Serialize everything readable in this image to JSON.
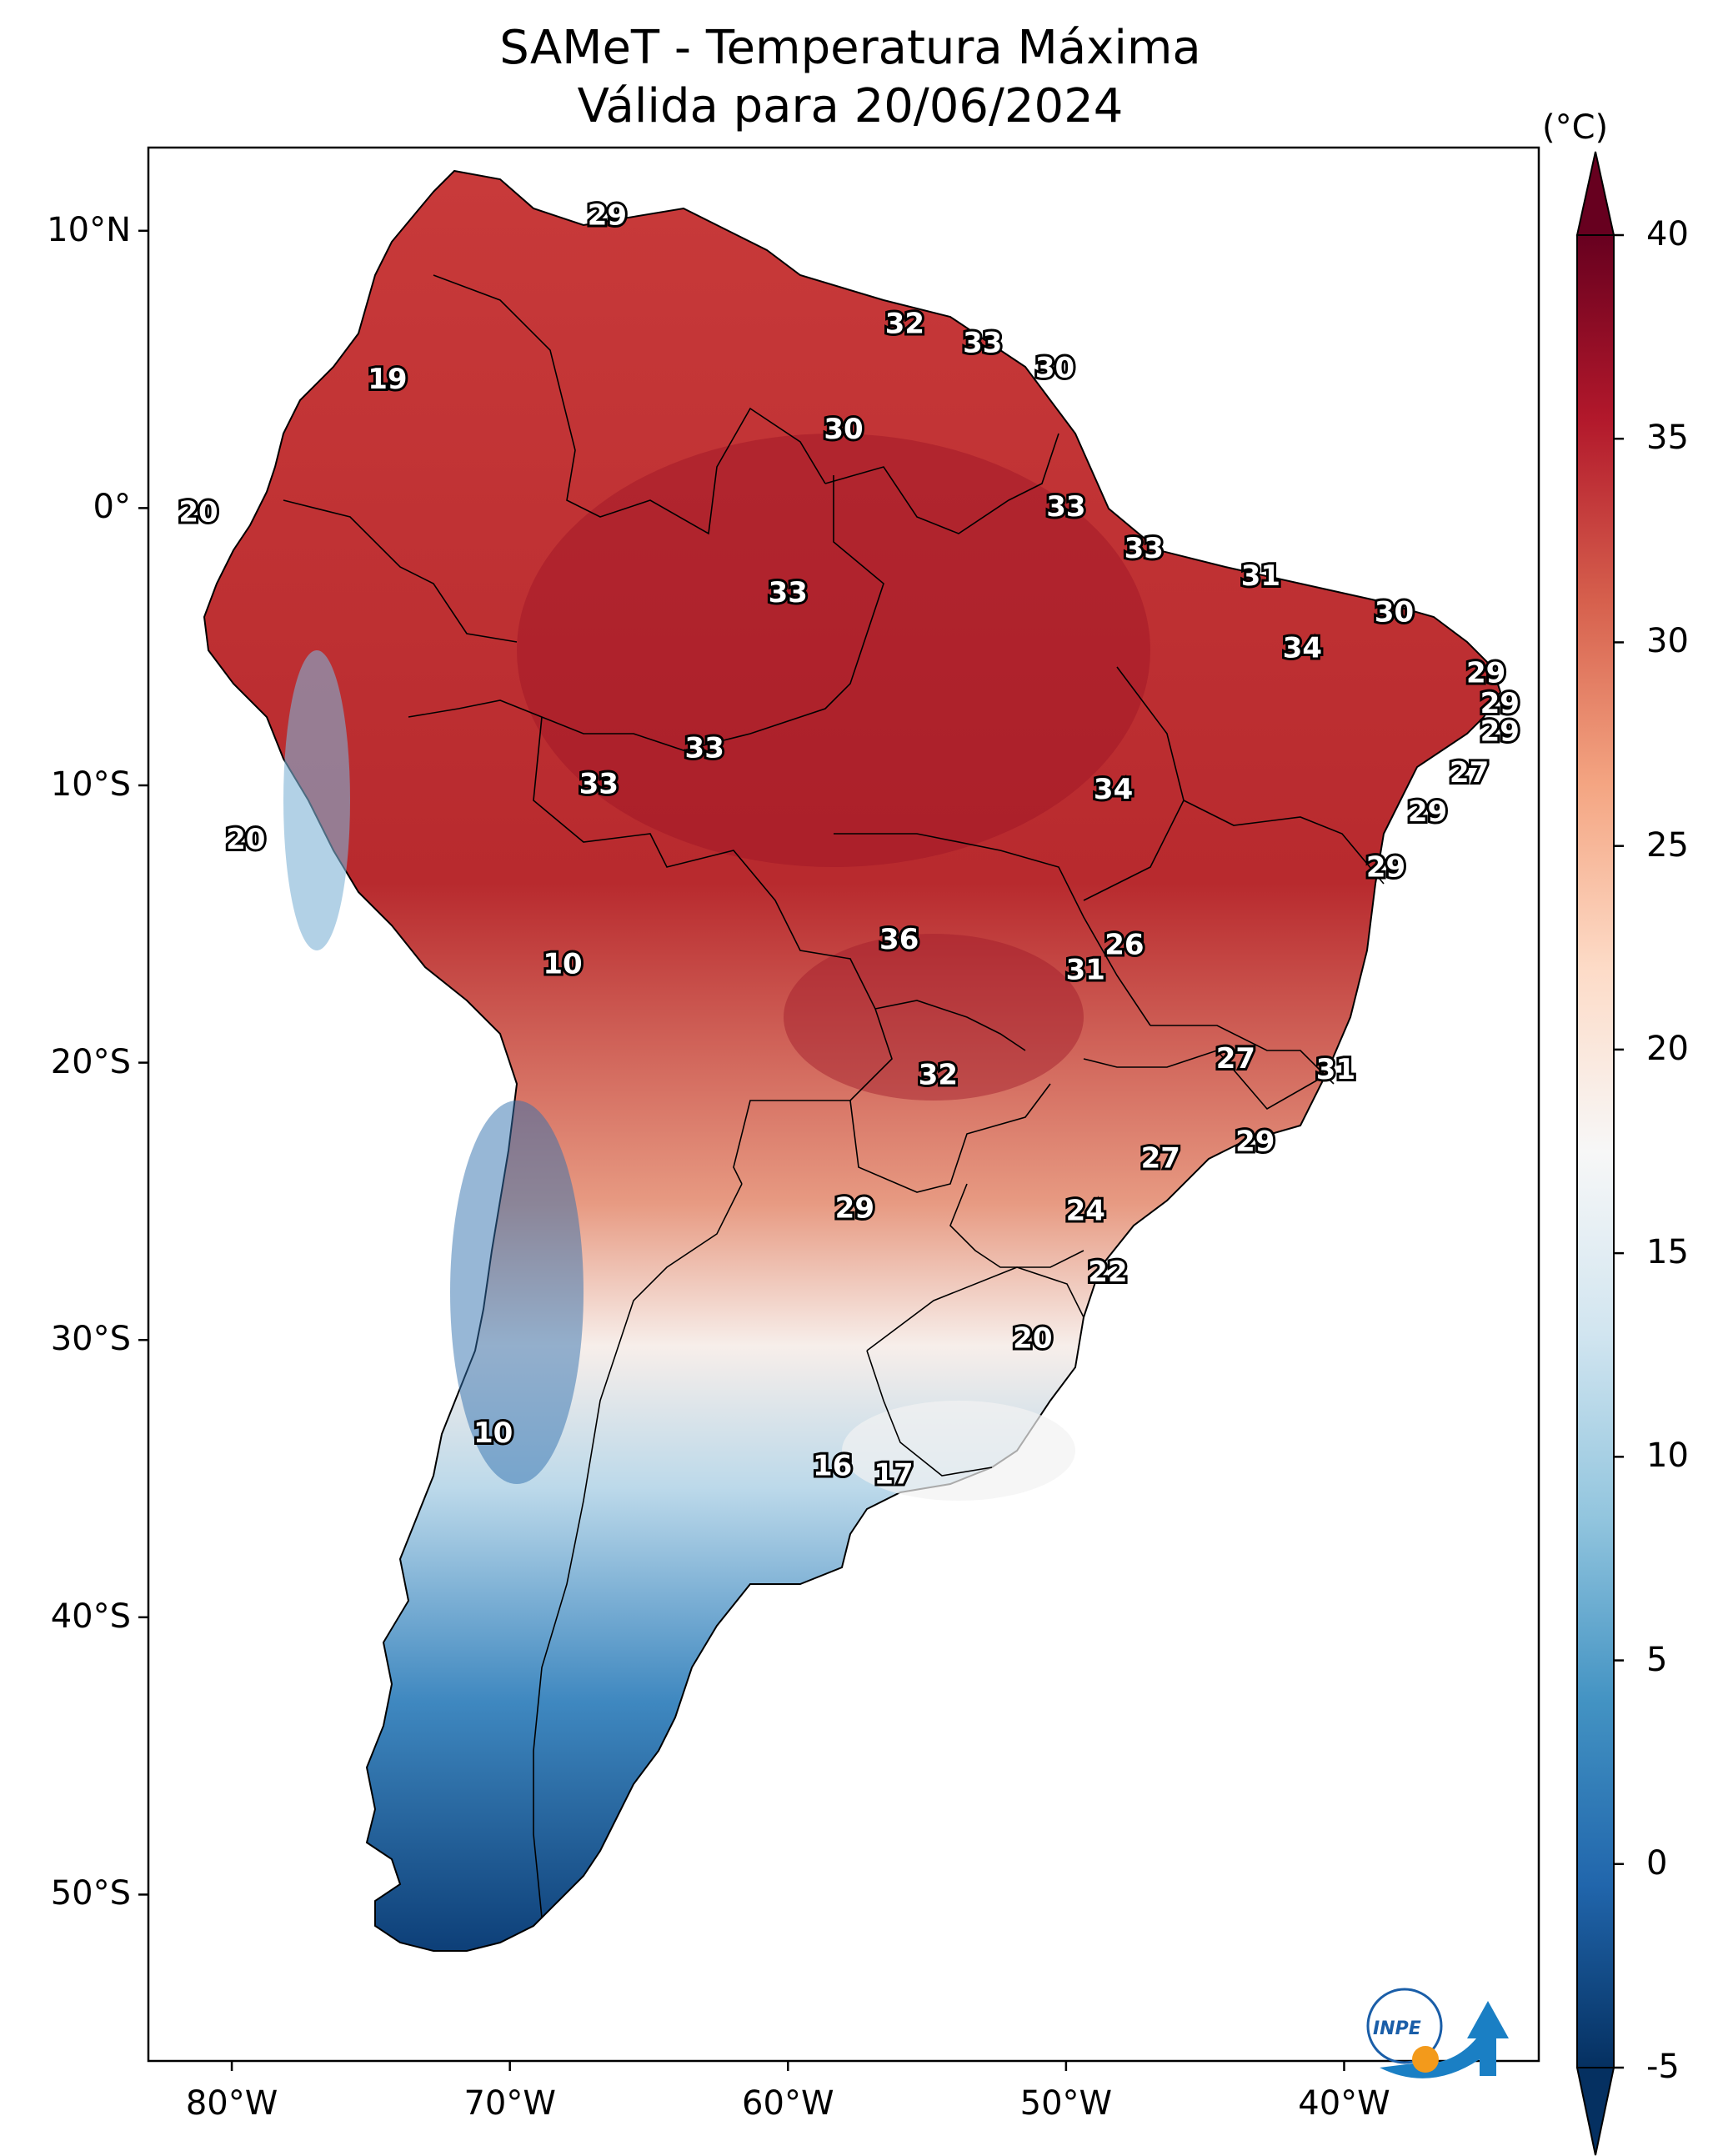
{
  "title": {
    "line1": "SAMeT - Temperatura Máxima",
    "line2": "Válida para 20/06/2024"
  },
  "axes": {
    "y_ticks": [
      {
        "label": "10°N",
        "lat": 10
      },
      {
        "label": "0°",
        "lat": 0
      },
      {
        "label": "10°S",
        "lat": -10
      },
      {
        "label": "20°S",
        "lat": -20
      },
      {
        "label": "30°S",
        "lat": -30
      },
      {
        "label": "40°S",
        "lat": -40
      },
      {
        "label": "50°S",
        "lat": -50
      }
    ],
    "x_ticks": [
      {
        "label": "80°W",
        "lon": -80
      },
      {
        "label": "70°W",
        "lon": -70
      },
      {
        "label": "60°W",
        "lon": -60
      },
      {
        "label": "50°W",
        "lon": -50
      },
      {
        "label": "40°W",
        "lon": -40
      }
    ],
    "lon_range": [
      -83,
      -33
    ],
    "lat_range": [
      -56,
      13
    ]
  },
  "colorbar": {
    "unit": "(°C)",
    "ticks": [
      "40",
      "35",
      "30",
      "25",
      "20",
      "15",
      "10",
      "5",
      "0",
      "-5"
    ],
    "range": [
      -5,
      40
    ],
    "colors": [
      "#053061",
      "#2166ac",
      "#4393c3",
      "#92c5de",
      "#d1e5f0",
      "#f7f7f7",
      "#fddbc7",
      "#f4a582",
      "#d6604d",
      "#b2182b",
      "#67001f"
    ]
  },
  "logo": {
    "text": "INPE"
  },
  "chart_data": {
    "type": "map",
    "title": "SAMeT - Temperatura Máxima Válida para 20/06/2024",
    "variable": "Temperatura Máxima (°C)",
    "station_values": [
      {
        "label": "29",
        "lon": -66.5,
        "lat": 10.5
      },
      {
        "label": "19",
        "lon": -74.4,
        "lat": 4.6
      },
      {
        "label": "32",
        "lon": -55.8,
        "lat": 6.6
      },
      {
        "label": "33",
        "lon": -53.0,
        "lat": 5.9
      },
      {
        "label": "30",
        "lon": -50.4,
        "lat": 5.0
      },
      {
        "label": "30",
        "lon": -58.0,
        "lat": 2.8
      },
      {
        "label": "20",
        "lon": -81.2,
        "lat": -0.2
      },
      {
        "label": "33",
        "lon": -50.0,
        "lat": 0.0
      },
      {
        "label": "33",
        "lon": -47.2,
        "lat": -1.5
      },
      {
        "label": "31",
        "lon": -43.0,
        "lat": -2.5
      },
      {
        "label": "30",
        "lon": -38.2,
        "lat": -3.8
      },
      {
        "label": "33",
        "lon": -60.0,
        "lat": -3.1
      },
      {
        "label": "34",
        "lon": -41.5,
        "lat": -5.1
      },
      {
        "label": "29",
        "lon": -34.9,
        "lat": -6.0
      },
      {
        "label": "29",
        "lon": -34.4,
        "lat": -7.1
      },
      {
        "label": "29",
        "lon": -34.4,
        "lat": -8.1
      },
      {
        "label": "27",
        "lon": -35.5,
        "lat": -9.6
      },
      {
        "label": "33",
        "lon": -63.0,
        "lat": -8.7
      },
      {
        "label": "33",
        "lon": -66.8,
        "lat": -10.0
      },
      {
        "label": "34",
        "lon": -48.3,
        "lat": -10.2
      },
      {
        "label": "29",
        "lon": -37.0,
        "lat": -11.0
      },
      {
        "label": "20",
        "lon": -79.5,
        "lat": -12.0
      },
      {
        "label": "29",
        "lon": -38.5,
        "lat": -13.0
      },
      {
        "label": "36",
        "lon": -56.0,
        "lat": -15.6
      },
      {
        "label": "26",
        "lon": -47.9,
        "lat": -15.8
      },
      {
        "label": "31",
        "lon": -49.3,
        "lat": -16.7
      },
      {
        "label": "10",
        "lon": -68.1,
        "lat": -16.5
      },
      {
        "label": "27",
        "lon": -43.9,
        "lat": -19.9
      },
      {
        "label": "31",
        "lon": -40.3,
        "lat": -20.3
      },
      {
        "label": "32",
        "lon": -54.6,
        "lat": -20.5
      },
      {
        "label": "29",
        "lon": -43.2,
        "lat": -22.9
      },
      {
        "label": "27",
        "lon": -46.6,
        "lat": -23.5
      },
      {
        "label": "29",
        "lon": -57.6,
        "lat": -25.3
      },
      {
        "label": "24",
        "lon": -49.3,
        "lat": -25.4
      },
      {
        "label": "22",
        "lon": -48.5,
        "lat": -27.6
      },
      {
        "label": "20",
        "lon": -51.2,
        "lat": -30.0
      },
      {
        "label": "10",
        "lon": -70.6,
        "lat": -33.4
      },
      {
        "label": "16",
        "lon": -58.4,
        "lat": -34.6
      },
      {
        "label": "17",
        "lon": -56.2,
        "lat": -34.9
      }
    ]
  }
}
